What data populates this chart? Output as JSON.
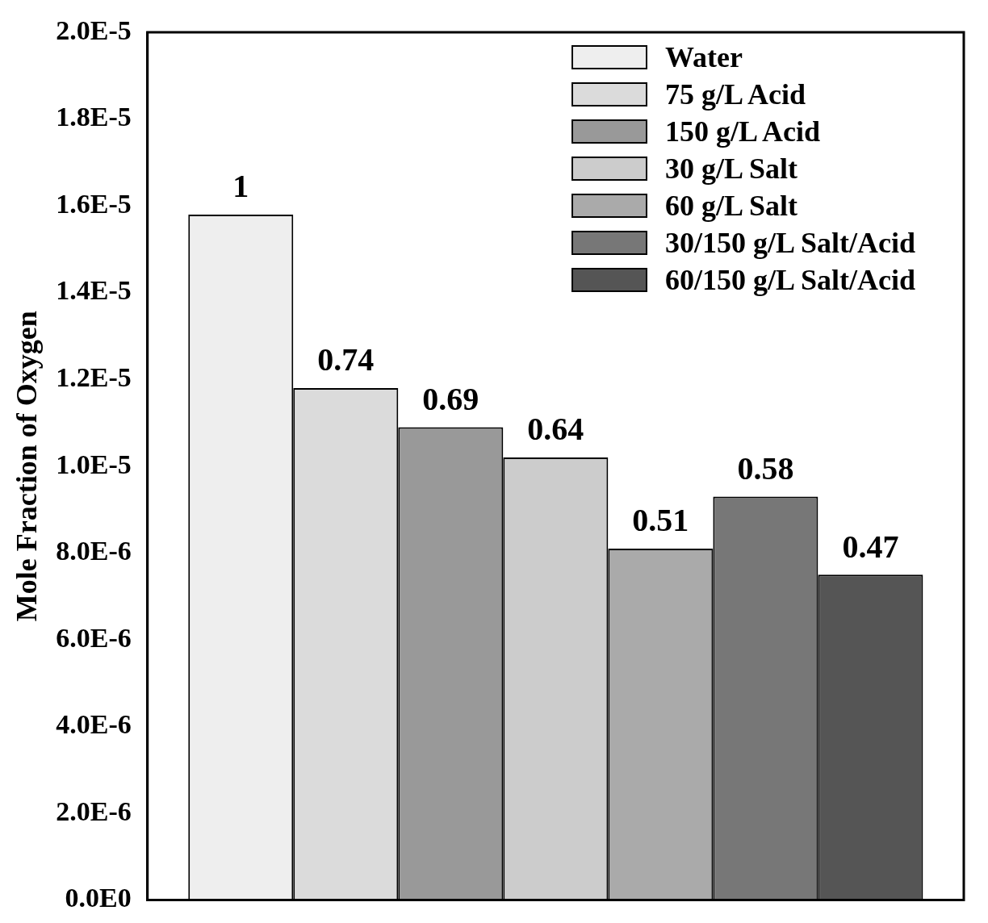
{
  "chart_data": {
    "type": "bar",
    "ylabel": "Mole Fraction of Oxygen",
    "categories": [
      null
    ],
    "series": [
      {
        "name": "Water",
        "color": "#eeeeee",
        "values": [
          1.58e-05
        ]
      },
      {
        "name": "75 g/L Acid",
        "color": "#dbdbdb",
        "values": [
          1.18e-05
        ]
      },
      {
        "name": "150 g/L Acid",
        "color": "#999999",
        "values": [
          1.09e-05
        ]
      },
      {
        "name": "30 g/L Salt",
        "color": "#cccccc",
        "values": [
          1.02e-05
        ]
      },
      {
        "name": "60 g/L Salt",
        "color": "#aaaaaa",
        "values": [
          8.1e-06
        ]
      },
      {
        "name": "30/150 g/L Salt/Acid",
        "color": "#777777",
        "values": [
          9.3e-06
        ]
      },
      {
        "name": "60/150 g/L Salt/Acid",
        "color": "#555555",
        "values": [
          7.5e-06
        ]
      }
    ],
    "annotations": [
      {
        "text": "1",
        "y": 1.58e-05
      },
      {
        "text": "0.74",
        "y": 1.18e-05
      },
      {
        "text": "0.69",
        "y": 1.09e-05
      },
      {
        "text": "0.64",
        "y": 1.02e-05
      },
      {
        "text": "0.51",
        "y": 8.1e-06
      },
      {
        "text": "0.58",
        "y": 9.3e-06
      },
      {
        "text": "0.47",
        "y": 7.5e-06
      }
    ],
    "ylim": [
      0,
      2e-05
    ],
    "yticks": [
      {
        "value": 0,
        "label": "0.0E0"
      },
      {
        "value": 2e-06,
        "label": "2.0E-6"
      },
      {
        "value": 4e-06,
        "label": "4.0E-6"
      },
      {
        "value": 6e-06,
        "label": "6.0E-6"
      },
      {
        "value": 8e-06,
        "label": "8.0E-6"
      },
      {
        "value": 1e-05,
        "label": "1.0E-5"
      },
      {
        "value": 1.2e-05,
        "label": "1.2E-5"
      },
      {
        "value": 1.4e-05,
        "label": "1.4E-5"
      },
      {
        "value": 1.6e-05,
        "label": "1.6E-5"
      },
      {
        "value": 1.8e-05,
        "label": "1.8E-5"
      },
      {
        "value": 2e-05,
        "label": "2.0E-5"
      }
    ],
    "tick_labels": "y",
    "grid": false,
    "legend": "top right"
  }
}
